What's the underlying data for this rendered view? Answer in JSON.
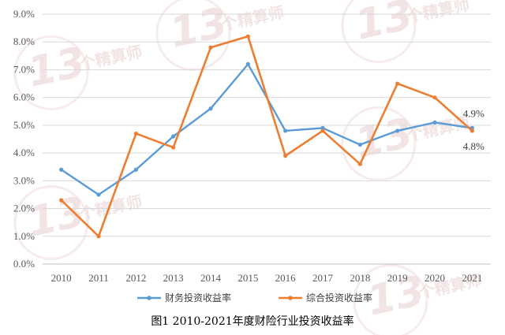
{
  "watermark": {
    "number": "13",
    "text": "个精算师"
  },
  "caption": "图1  2010-2021年度财险行业投资收益率",
  "chart_data": {
    "type": "line",
    "categories": [
      "2010",
      "2011",
      "2012",
      "2013",
      "2014",
      "2015",
      "2016",
      "2017",
      "2018",
      "2019",
      "2020",
      "2021"
    ],
    "ylim": [
      0,
      9
    ],
    "y_ticks": [
      "0.0%",
      "1.0%",
      "2.0%",
      "3.0%",
      "4.0%",
      "5.0%",
      "6.0%",
      "7.0%",
      "8.0%",
      "9.0%"
    ],
    "grid": "horizontal",
    "legend_position": "bottom",
    "series": [
      {
        "name": "财务投资收益率",
        "color": "#5b9bd5",
        "values": [
          3.4,
          2.5,
          3.4,
          4.6,
          5.6,
          7.2,
          4.8,
          4.9,
          4.3,
          4.8,
          5.1,
          4.9
        ]
      },
      {
        "name": "综合投资收益率",
        "color": "#ed7d31",
        "values": [
          2.3,
          1.0,
          4.7,
          4.2,
          7.8,
          8.2,
          3.9,
          4.8,
          3.6,
          6.5,
          6.0,
          4.8
        ]
      }
    ],
    "data_labels": [
      {
        "series": 0,
        "index": 11,
        "text": "4.9%"
      },
      {
        "series": 1,
        "index": 11,
        "text": "4.8%"
      }
    ]
  }
}
